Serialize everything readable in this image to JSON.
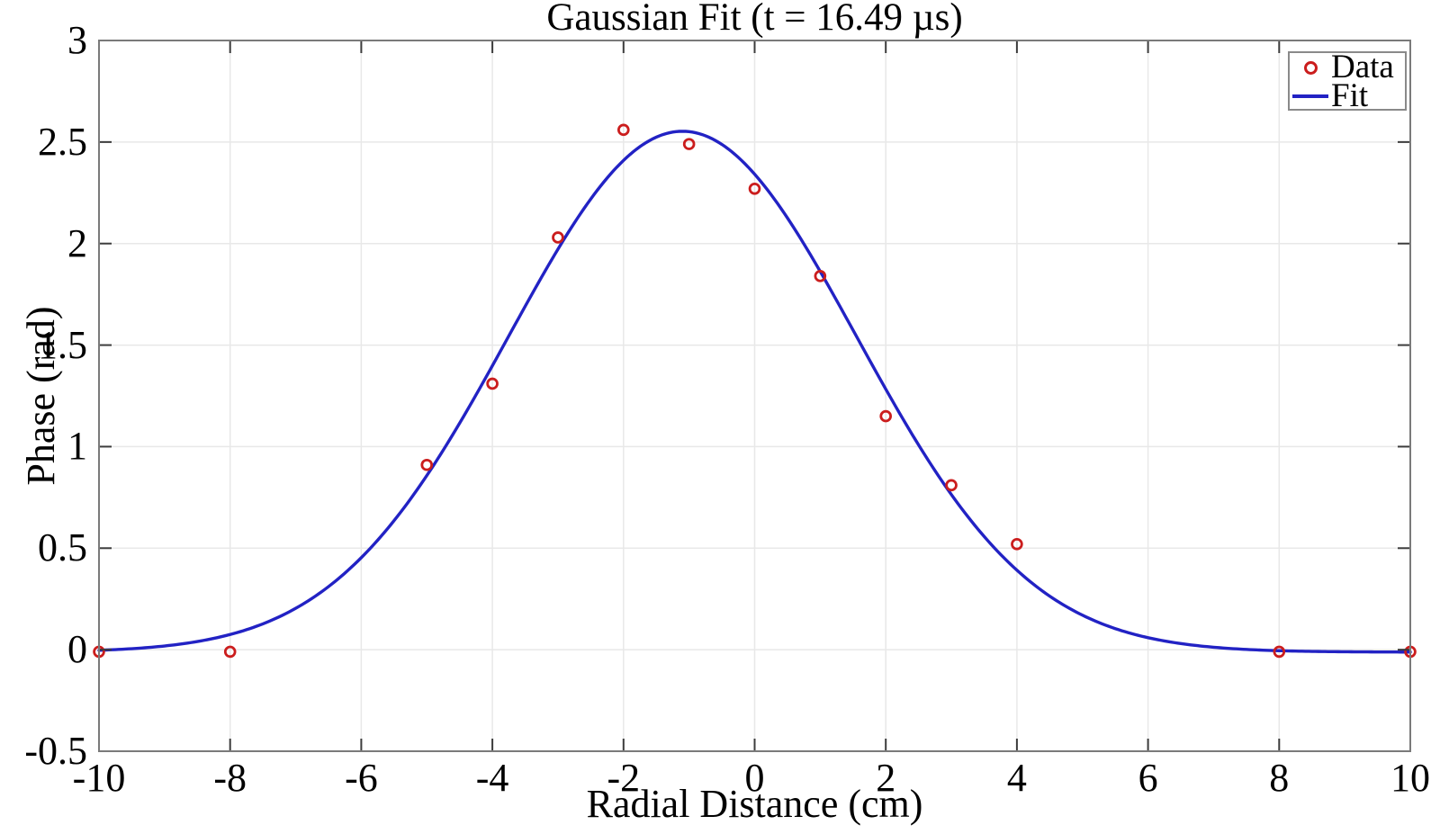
{
  "chart_data": {
    "type": "scatter",
    "title": "Gaussian Fit (t = 16.49 µs)",
    "xlabel": "Radial Distance (cm)",
    "ylabel": "Phase (rad)",
    "xlim": [
      -10,
      10
    ],
    "ylim": [
      -0.5,
      3
    ],
    "xticks": [
      -10,
      -8,
      -6,
      -4,
      -2,
      0,
      2,
      4,
      6,
      8,
      10
    ],
    "yticks": [
      -0.5,
      0,
      0.5,
      1,
      1.5,
      2,
      2.5,
      3
    ],
    "grid": true,
    "legend": {
      "position": "top-right",
      "entries": [
        {
          "label": "Data",
          "swatch": "open-circle-marker",
          "color": "#cb1d1d"
        },
        {
          "label": "Fit",
          "swatch": "solid-line",
          "color": "#2222c4"
        }
      ]
    },
    "series": [
      {
        "name": "Data",
        "type": "scatter",
        "marker": "open-circle",
        "color": "#cb1d1d",
        "points": [
          [
            -10,
            -0.01
          ],
          [
            -8,
            -0.01
          ],
          [
            -5,
            0.91
          ],
          [
            -4,
            1.31
          ],
          [
            -3,
            2.03
          ],
          [
            -2,
            2.56
          ],
          [
            -1,
            2.49
          ],
          [
            0,
            2.27
          ],
          [
            1,
            1.84
          ],
          [
            2,
            1.15
          ],
          [
            3,
            0.81
          ],
          [
            4,
            0.52
          ],
          [
            8,
            -0.01
          ],
          [
            10,
            -0.01
          ]
        ]
      },
      {
        "name": "Fit",
        "type": "gaussian-curve",
        "color": "#2222c4",
        "params": {
          "amplitude": 2.565,
          "center": -1.1,
          "width": 3.75,
          "offset": -0.012
        }
      }
    ],
    "colors": {
      "grid": "#e8e8e8",
      "axis_box": "#7a7a7a",
      "tick_mark": "#3c3c3c",
      "text": "#000000",
      "background": "#ffffff"
    }
  }
}
